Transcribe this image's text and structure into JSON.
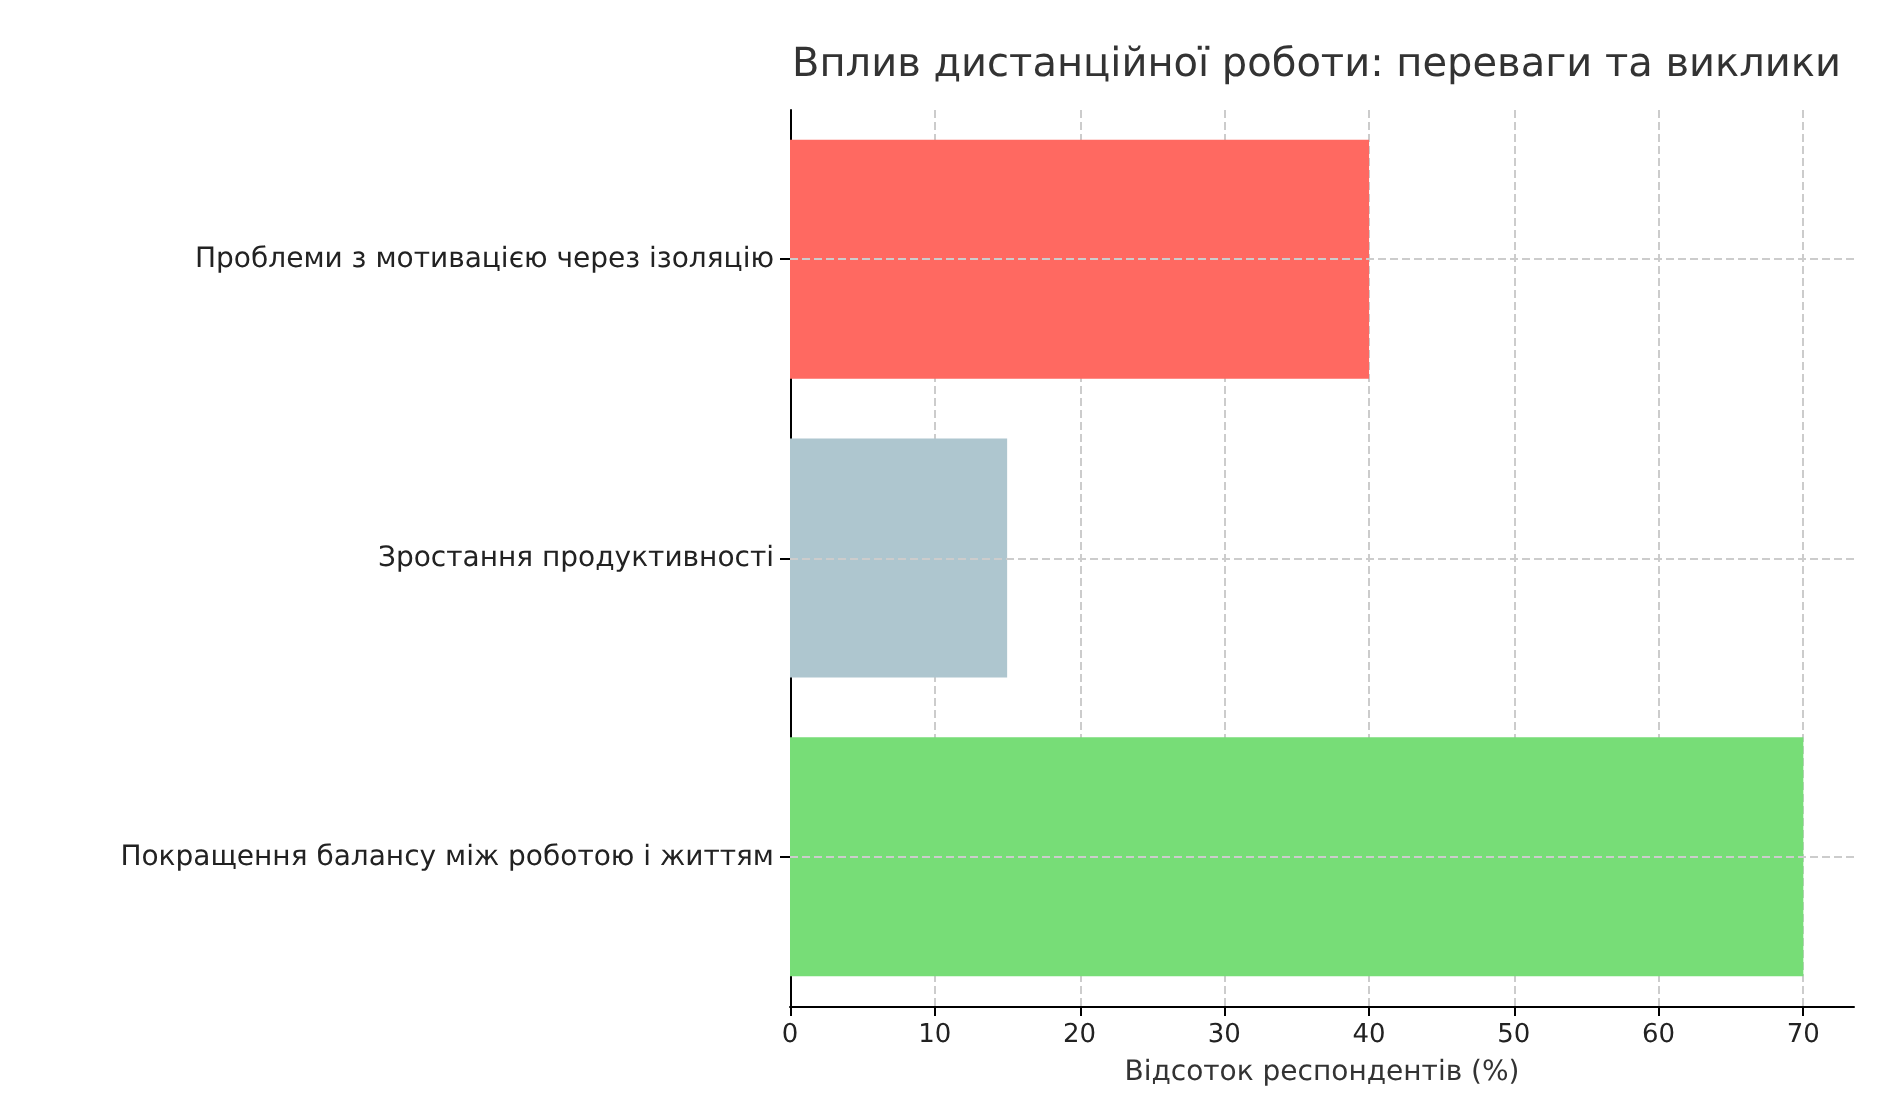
{
  "chart_data": {
    "type": "bar",
    "orientation": "horizontal",
    "title": "Вплив дистанційної роботи: переваги та виклики",
    "xlabel": "Відсоток респондентів (%)",
    "categories": [
      "Проблеми з мотивацією через ізоляцію",
      "Зростання продуктивності",
      "Покращення балансу між роботою і життям"
    ],
    "values": [
      40,
      15,
      70
    ],
    "colors": [
      "#ff6961",
      "#aec6cf",
      "#77dd77"
    ],
    "xlim": [
      0,
      73.5
    ],
    "xticks": [
      0,
      10,
      20,
      30,
      40,
      50,
      60,
      70
    ],
    "grid": true
  }
}
